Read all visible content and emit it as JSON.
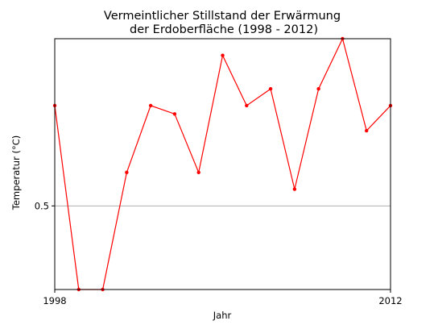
{
  "chart_data": {
    "type": "line",
    "title_lines": [
      "Vermeintlicher Stillstand der Erwärmung",
      "der Erdoberfläche (1998 - 2012)"
    ],
    "xlabel": "Jahr",
    "ylabel": "Temperatur (°C)",
    "x": [
      1998,
      1999,
      2000,
      2001,
      2002,
      2003,
      2004,
      2005,
      2006,
      2007,
      2008,
      2009,
      2010,
      2011,
      2012
    ],
    "series": [
      {
        "values": [
          0.62,
          0.4,
          0.4,
          0.54,
          0.62,
          0.61,
          0.54,
          0.68,
          0.62,
          0.64,
          0.52,
          0.64,
          0.7,
          0.59,
          0.62
        ],
        "color": "#ff0000"
      }
    ],
    "xlim": [
      1998,
      2012
    ],
    "ylim": [
      0.4,
      0.7
    ],
    "xticks": [
      1998,
      2012
    ],
    "xtick_labels": [
      "1998",
      "2012"
    ],
    "yticks": [
      0.5
    ],
    "ytick_labels": [
      "0.5"
    ],
    "hlines": [
      0.5
    ],
    "hline_color": "#b0b0b0",
    "grid": false,
    "legend": "none"
  }
}
